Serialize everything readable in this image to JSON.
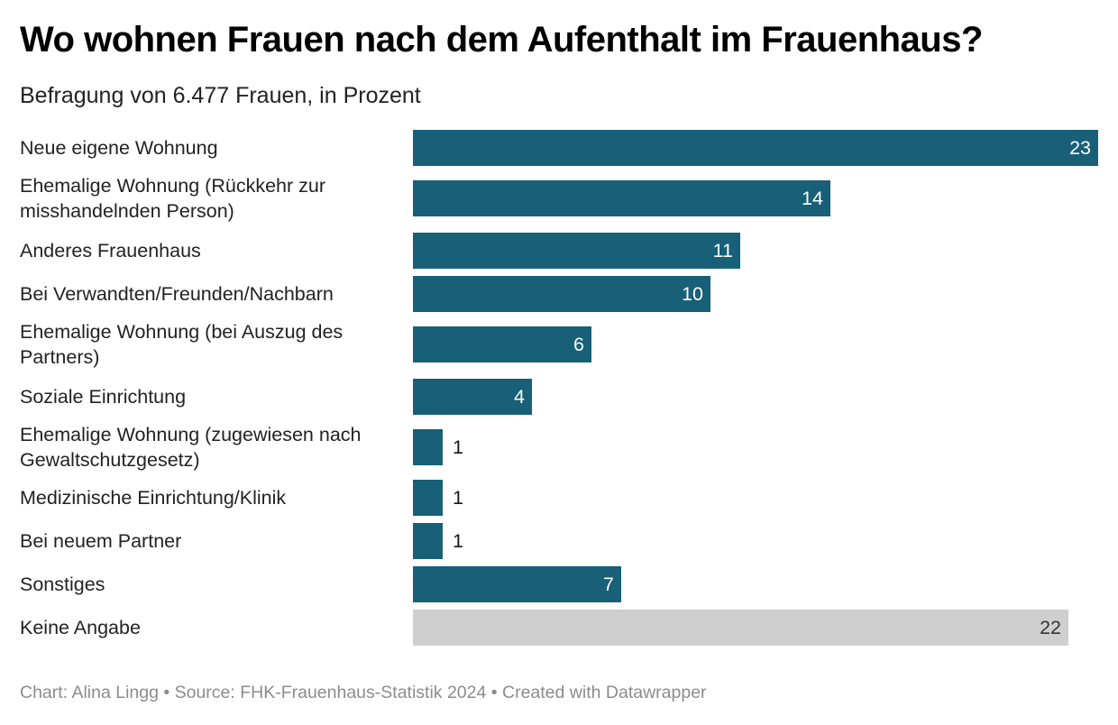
{
  "header": {
    "title": "Wo wohnen Frauen nach dem Aufenthalt im Frauenhaus?",
    "subtitle": "Befragung von 6.477 Frauen, in Prozent"
  },
  "footer": {
    "text": "Chart: Alina Lingg • Source: FHK-Frauenhaus-Statistik 2024 • Created with Datawrapper"
  },
  "colors": {
    "primary_bar": "#176078",
    "neutral_bar": "#cfcfcf",
    "label_on_bar": "#ffffff",
    "label_outside": "#181818",
    "label_on_neutral": "#333333"
  },
  "chart_data": {
    "type": "bar",
    "orientation": "horizontal",
    "title": "Wo wohnen Frauen nach dem Aufenthalt im Frauenhaus?",
    "subtitle": "Befragung von 6.477 Frauen, in Prozent",
    "xlabel": "",
    "ylabel": "",
    "xlim": [
      0,
      23
    ],
    "grid": false,
    "unit": "Prozent",
    "categories": [
      "Neue eigene Wohnung",
      "Ehemalige Wohnung (Rückkehr zur misshandelnden Person)",
      "Anderes Frauenhaus",
      "Bei Verwandten/Freunden/Nachbarn",
      "Ehemalige Wohnung (bei Auszug des Partners)",
      "Soziale Einrichtung",
      "Ehemalige Wohnung (zugewiesen nach Gewaltschutzgesetz)",
      "Medizinische Einrichtung/Klinik",
      "Bei neuem Partner",
      "Sonstiges",
      "Keine Angabe"
    ],
    "values": [
      23,
      14,
      11,
      10,
      6,
      4,
      1,
      1,
      1,
      7,
      22
    ],
    "highlight": [
      "primary",
      "primary",
      "primary",
      "primary",
      "primary",
      "primary",
      "primary",
      "primary",
      "primary",
      "primary",
      "neutral"
    ],
    "source": "FHK-Frauenhaus-Statistik 2024"
  }
}
